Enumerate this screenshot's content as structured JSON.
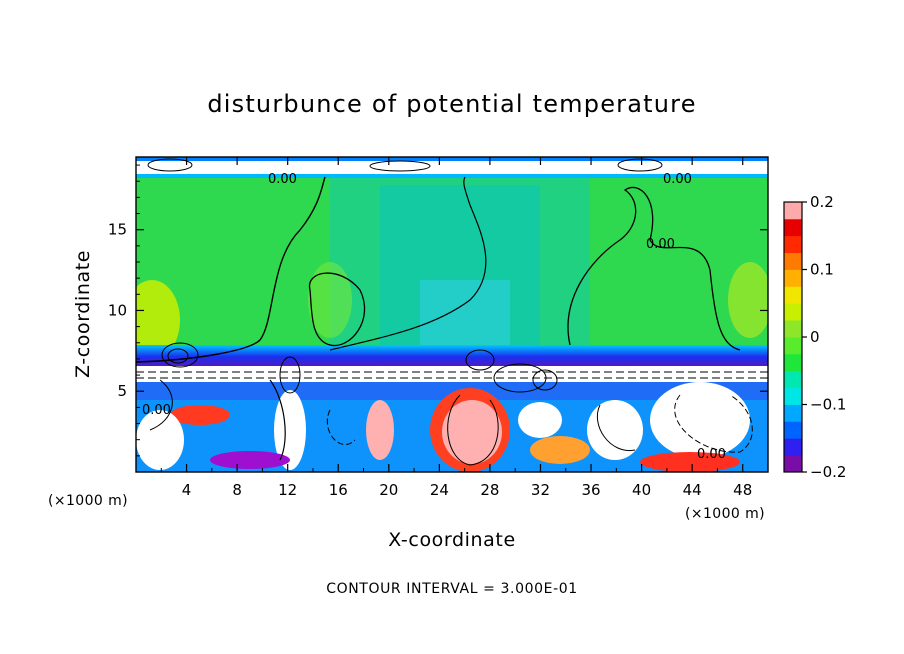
{
  "chart_data": {
    "type": "heatmap",
    "title": "disturbunce of potential temperature",
    "xlabel": "X-coordinate",
    "ylabel": "Z-coordinate",
    "x_multiplier": "(×1000 m)",
    "y_multiplier": "(×1000 m)",
    "xlim": [
      0,
      50
    ],
    "ylim": [
      0,
      19.5
    ],
    "x_ticks": [
      4,
      8,
      12,
      16,
      20,
      24,
      28,
      32,
      36,
      40,
      44,
      48
    ],
    "y_ticks": [
      5,
      10,
      15
    ],
    "colorbar": {
      "range": [
        -0.2,
        0.2
      ],
      "ticks": [
        {
          "value": 0.2,
          "label": "0.2"
        },
        {
          "value": 0.1,
          "label": "0.1"
        },
        {
          "value": 0.0,
          "label": "0"
        },
        {
          "value": -0.1,
          "label": "−0.1"
        },
        {
          "value": -0.2,
          "label": "−0.2"
        }
      ],
      "colors": [
        "#7a0da8",
        "#2f1ff0",
        "#0064ff",
        "#00a8ff",
        "#00e5e5",
        "#00e8b0",
        "#1fe63a",
        "#59ec2c",
        "#8de628",
        "#c8ef00",
        "#f0e600",
        "#ffb000",
        "#ff7a00",
        "#ff2a00",
        "#e60000",
        "#ffaaaa"
      ]
    },
    "contour_labels": [
      "0.00",
      "0.00",
      "0.00",
      "0.00",
      "0.00"
    ],
    "contour_interval": "CONTOUR INTERVAL = 3.000E-01"
  }
}
